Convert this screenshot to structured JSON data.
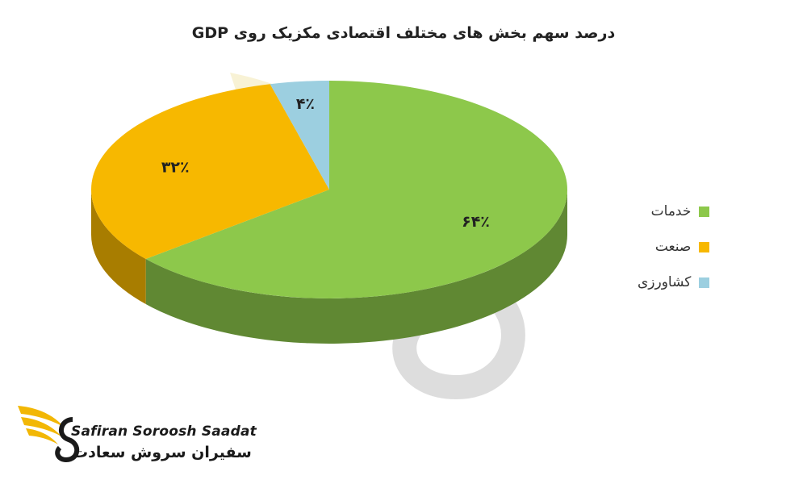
{
  "chart_data": {
    "type": "pie",
    "title": "درصد سهم بخش های مختلف اقتصادی مکزیک روی GDP",
    "slices": [
      {
        "label": "خدمات",
        "value": 64,
        "display": "۶۴٪",
        "color": "#8dc84b"
      },
      {
        "label": "صنعت",
        "value": 32,
        "display": "۳۲٪",
        "color": "#f7b800"
      },
      {
        "label": "کشاورزی",
        "value": 4,
        "display": "۴٪",
        "color": "#9ccfe0"
      }
    ],
    "legend_position": "right",
    "style": "3d"
  },
  "brand": {
    "name_en": "Safiran Soroosh Saadat",
    "name_fa": "سفیران سروش سعادت"
  }
}
